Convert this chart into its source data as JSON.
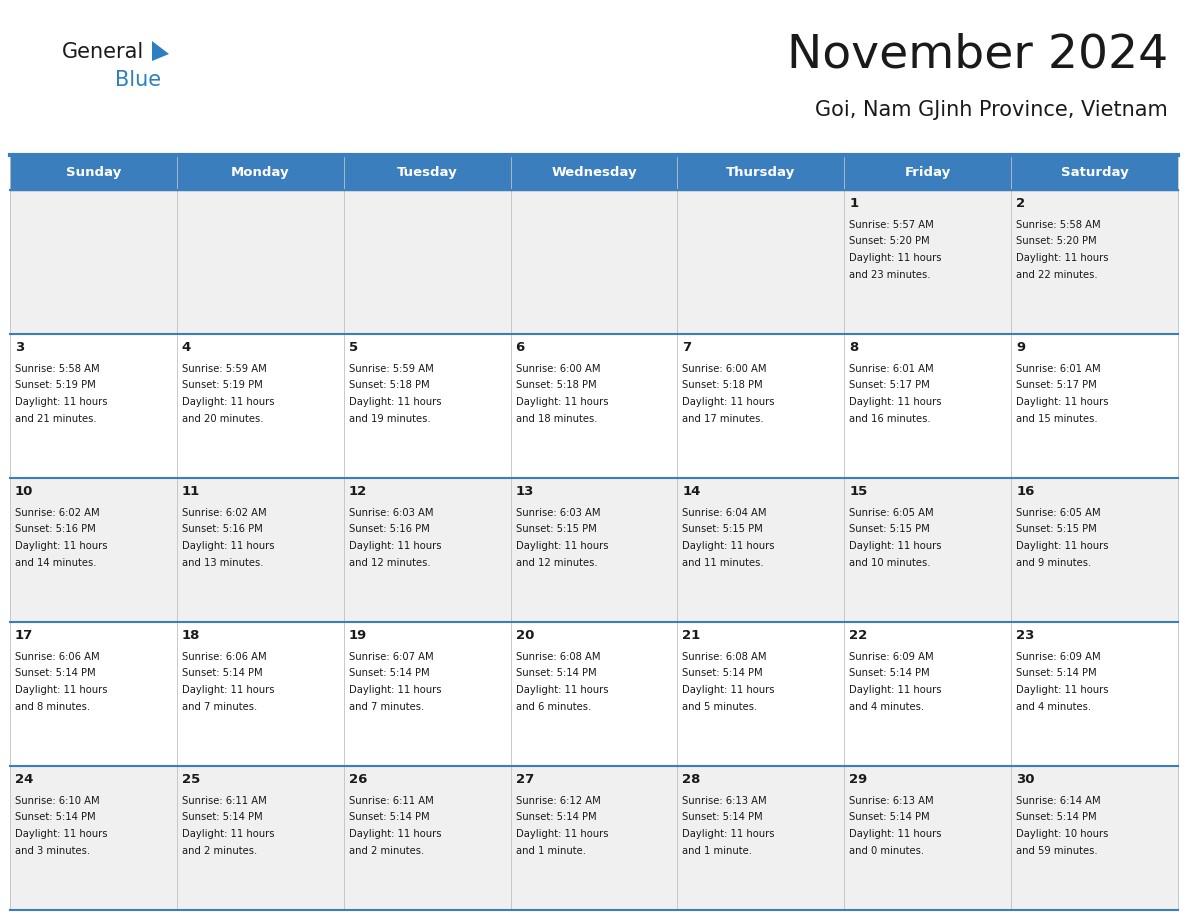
{
  "title": "November 2024",
  "subtitle": "Goi, Nam GJinh Province, Vietnam",
  "header_bg": "#3A7EBD",
  "header_text_color": "#FFFFFF",
  "cell_bg_odd": "#F0F0F0",
  "cell_bg_even": "#FFFFFF",
  "border_color": "#3A7EBD",
  "text_color": "#1A1A1A",
  "day_headers": [
    "Sunday",
    "Monday",
    "Tuesday",
    "Wednesday",
    "Thursday",
    "Friday",
    "Saturday"
  ],
  "days": [
    {
      "day": 1,
      "col": 5,
      "row": 0,
      "sunrise": "5:57 AM",
      "sunset": "5:20 PM",
      "dl1": "Daylight: 11 hours",
      "dl2": "and 23 minutes."
    },
    {
      "day": 2,
      "col": 6,
      "row": 0,
      "sunrise": "5:58 AM",
      "sunset": "5:20 PM",
      "dl1": "Daylight: 11 hours",
      "dl2": "and 22 minutes."
    },
    {
      "day": 3,
      "col": 0,
      "row": 1,
      "sunrise": "5:58 AM",
      "sunset": "5:19 PM",
      "dl1": "Daylight: 11 hours",
      "dl2": "and 21 minutes."
    },
    {
      "day": 4,
      "col": 1,
      "row": 1,
      "sunrise": "5:59 AM",
      "sunset": "5:19 PM",
      "dl1": "Daylight: 11 hours",
      "dl2": "and 20 minutes."
    },
    {
      "day": 5,
      "col": 2,
      "row": 1,
      "sunrise": "5:59 AM",
      "sunset": "5:18 PM",
      "dl1": "Daylight: 11 hours",
      "dl2": "and 19 minutes."
    },
    {
      "day": 6,
      "col": 3,
      "row": 1,
      "sunrise": "6:00 AM",
      "sunset": "5:18 PM",
      "dl1": "Daylight: 11 hours",
      "dl2": "and 18 minutes."
    },
    {
      "day": 7,
      "col": 4,
      "row": 1,
      "sunrise": "6:00 AM",
      "sunset": "5:18 PM",
      "dl1": "Daylight: 11 hours",
      "dl2": "and 17 minutes."
    },
    {
      "day": 8,
      "col": 5,
      "row": 1,
      "sunrise": "6:01 AM",
      "sunset": "5:17 PM",
      "dl1": "Daylight: 11 hours",
      "dl2": "and 16 minutes."
    },
    {
      "day": 9,
      "col": 6,
      "row": 1,
      "sunrise": "6:01 AM",
      "sunset": "5:17 PM",
      "dl1": "Daylight: 11 hours",
      "dl2": "and 15 minutes."
    },
    {
      "day": 10,
      "col": 0,
      "row": 2,
      "sunrise": "6:02 AM",
      "sunset": "5:16 PM",
      "dl1": "Daylight: 11 hours",
      "dl2": "and 14 minutes."
    },
    {
      "day": 11,
      "col": 1,
      "row": 2,
      "sunrise": "6:02 AM",
      "sunset": "5:16 PM",
      "dl1": "Daylight: 11 hours",
      "dl2": "and 13 minutes."
    },
    {
      "day": 12,
      "col": 2,
      "row": 2,
      "sunrise": "6:03 AM",
      "sunset": "5:16 PM",
      "dl1": "Daylight: 11 hours",
      "dl2": "and 12 minutes."
    },
    {
      "day": 13,
      "col": 3,
      "row": 2,
      "sunrise": "6:03 AM",
      "sunset": "5:15 PM",
      "dl1": "Daylight: 11 hours",
      "dl2": "and 12 minutes."
    },
    {
      "day": 14,
      "col": 4,
      "row": 2,
      "sunrise": "6:04 AM",
      "sunset": "5:15 PM",
      "dl1": "Daylight: 11 hours",
      "dl2": "and 11 minutes."
    },
    {
      "day": 15,
      "col": 5,
      "row": 2,
      "sunrise": "6:05 AM",
      "sunset": "5:15 PM",
      "dl1": "Daylight: 11 hours",
      "dl2": "and 10 minutes."
    },
    {
      "day": 16,
      "col": 6,
      "row": 2,
      "sunrise": "6:05 AM",
      "sunset": "5:15 PM",
      "dl1": "Daylight: 11 hours",
      "dl2": "and 9 minutes."
    },
    {
      "day": 17,
      "col": 0,
      "row": 3,
      "sunrise": "6:06 AM",
      "sunset": "5:14 PM",
      "dl1": "Daylight: 11 hours",
      "dl2": "and 8 minutes."
    },
    {
      "day": 18,
      "col": 1,
      "row": 3,
      "sunrise": "6:06 AM",
      "sunset": "5:14 PM",
      "dl1": "Daylight: 11 hours",
      "dl2": "and 7 minutes."
    },
    {
      "day": 19,
      "col": 2,
      "row": 3,
      "sunrise": "6:07 AM",
      "sunset": "5:14 PM",
      "dl1": "Daylight: 11 hours",
      "dl2": "and 7 minutes."
    },
    {
      "day": 20,
      "col": 3,
      "row": 3,
      "sunrise": "6:08 AM",
      "sunset": "5:14 PM",
      "dl1": "Daylight: 11 hours",
      "dl2": "and 6 minutes."
    },
    {
      "day": 21,
      "col": 4,
      "row": 3,
      "sunrise": "6:08 AM",
      "sunset": "5:14 PM",
      "dl1": "Daylight: 11 hours",
      "dl2": "and 5 minutes."
    },
    {
      "day": 22,
      "col": 5,
      "row": 3,
      "sunrise": "6:09 AM",
      "sunset": "5:14 PM",
      "dl1": "Daylight: 11 hours",
      "dl2": "and 4 minutes."
    },
    {
      "day": 23,
      "col": 6,
      "row": 3,
      "sunrise": "6:09 AM",
      "sunset": "5:14 PM",
      "dl1": "Daylight: 11 hours",
      "dl2": "and 4 minutes."
    },
    {
      "day": 24,
      "col": 0,
      "row": 4,
      "sunrise": "6:10 AM",
      "sunset": "5:14 PM",
      "dl1": "Daylight: 11 hours",
      "dl2": "and 3 minutes."
    },
    {
      "day": 25,
      "col": 1,
      "row": 4,
      "sunrise": "6:11 AM",
      "sunset": "5:14 PM",
      "dl1": "Daylight: 11 hours",
      "dl2": "and 2 minutes."
    },
    {
      "day": 26,
      "col": 2,
      "row": 4,
      "sunrise": "6:11 AM",
      "sunset": "5:14 PM",
      "dl1": "Daylight: 11 hours",
      "dl2": "and 2 minutes."
    },
    {
      "day": 27,
      "col": 3,
      "row": 4,
      "sunrise": "6:12 AM",
      "sunset": "5:14 PM",
      "dl1": "Daylight: 11 hours",
      "dl2": "and 1 minute."
    },
    {
      "day": 28,
      "col": 4,
      "row": 4,
      "sunrise": "6:13 AM",
      "sunset": "5:14 PM",
      "dl1": "Daylight: 11 hours",
      "dl2": "and 1 minute."
    },
    {
      "day": 29,
      "col": 5,
      "row": 4,
      "sunrise": "6:13 AM",
      "sunset": "5:14 PM",
      "dl1": "Daylight: 11 hours",
      "dl2": "and 0 minutes."
    },
    {
      "day": 30,
      "col": 6,
      "row": 4,
      "sunrise": "6:14 AM",
      "sunset": "5:14 PM",
      "dl1": "Daylight: 10 hours",
      "dl2": "and 59 minutes."
    }
  ],
  "num_rows": 5,
  "num_cols": 7,
  "logo_general_color": "#1A1A1A",
  "logo_blue_color": "#2E7FC1",
  "logo_triangle_color": "#2E7FC1"
}
